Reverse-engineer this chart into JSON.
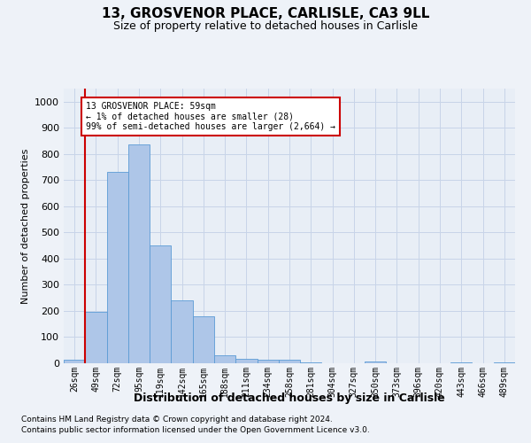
{
  "title": "13, GROSVENOR PLACE, CARLISLE, CA3 9LL",
  "subtitle": "Size of property relative to detached houses in Carlisle",
  "xlabel": "Distribution of detached houses by size in Carlisle",
  "ylabel": "Number of detached properties",
  "categories": [
    "26sqm",
    "49sqm",
    "72sqm",
    "95sqm",
    "119sqm",
    "142sqm",
    "165sqm",
    "188sqm",
    "211sqm",
    "234sqm",
    "258sqm",
    "281sqm",
    "304sqm",
    "327sqm",
    "350sqm",
    "373sqm",
    "396sqm",
    "420sqm",
    "443sqm",
    "466sqm",
    "489sqm"
  ],
  "values": [
    12,
    195,
    730,
    835,
    450,
    240,
    180,
    30,
    17,
    14,
    12,
    5,
    0,
    0,
    8,
    0,
    0,
    0,
    5,
    0,
    5
  ],
  "bar_color": "#aec6e8",
  "bar_edge_color": "#5b9bd5",
  "grid_color": "#c8d4e8",
  "annotation_box_color": "#ffffff",
  "annotation_box_edge_color": "#cc0000",
  "vline_color": "#cc0000",
  "annotation_text_line1": "13 GROSVENOR PLACE: 59sqm",
  "annotation_text_line2": "← 1% of detached houses are smaller (28)",
  "annotation_text_line3": "99% of semi-detached houses are larger (2,664) →",
  "vline_x_index": 1,
  "ylim": [
    0,
    1050
  ],
  "yticks": [
    0,
    100,
    200,
    300,
    400,
    500,
    600,
    700,
    800,
    900,
    1000
  ],
  "footnote1": "Contains HM Land Registry data © Crown copyright and database right 2024.",
  "footnote2": "Contains public sector information licensed under the Open Government Licence v3.0.",
  "background_color": "#eef2f8",
  "plot_background": "#e8eef6"
}
